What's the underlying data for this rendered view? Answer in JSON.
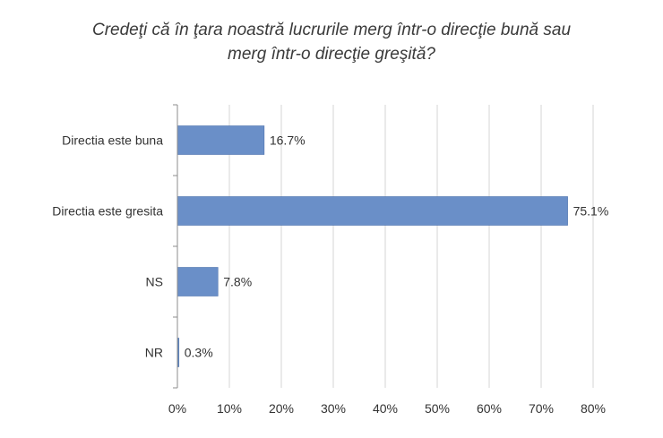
{
  "chart_data": {
    "type": "bar",
    "orientation": "horizontal",
    "title_lines": [
      "Credeţi că în ţara noastră lucrurile merg într-o direcţie bună sau",
      "merg într-o direcţie greşită?"
    ],
    "categories": [
      "Directia este buna",
      "Directia este gresita",
      "NS",
      "NR"
    ],
    "values": [
      16.7,
      75.1,
      7.8,
      0.3
    ],
    "data_labels": [
      "16.7%",
      "75.1%",
      "7.8%",
      "0.3%"
    ],
    "xlim": [
      0,
      80
    ],
    "x_ticks": [
      0,
      10,
      20,
      30,
      40,
      50,
      60,
      70,
      80
    ],
    "x_tick_labels": [
      "0%",
      "10%",
      "20%",
      "30%",
      "40%",
      "50%",
      "60%",
      "70%",
      "80%"
    ],
    "grid": "vertical",
    "legend": "none",
    "colors": {
      "bar": "#6a8fc8",
      "bar_stroke": "#4f73ad",
      "grid": "#d6d6d6",
      "axis": "#8c8c8c"
    }
  }
}
